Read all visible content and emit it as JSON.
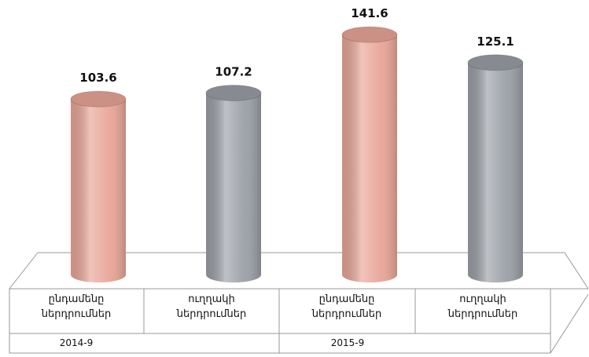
{
  "chart_data": {
    "type": "cylinder",
    "categories": [
      "ընդամենը ներդրումներ",
      "ուղղակի ներդրումներ",
      "ընդամենը ներդրումներ",
      "ուղղակի ներդրումներ"
    ],
    "groups": [
      "2014-9",
      "2015-9"
    ],
    "values": [
      103.6,
      107.2,
      141.6,
      125.1
    ],
    "colors": [
      "#e8a597",
      "#9a9fa6",
      "#e8a597",
      "#9a9fa6"
    ]
  }
}
